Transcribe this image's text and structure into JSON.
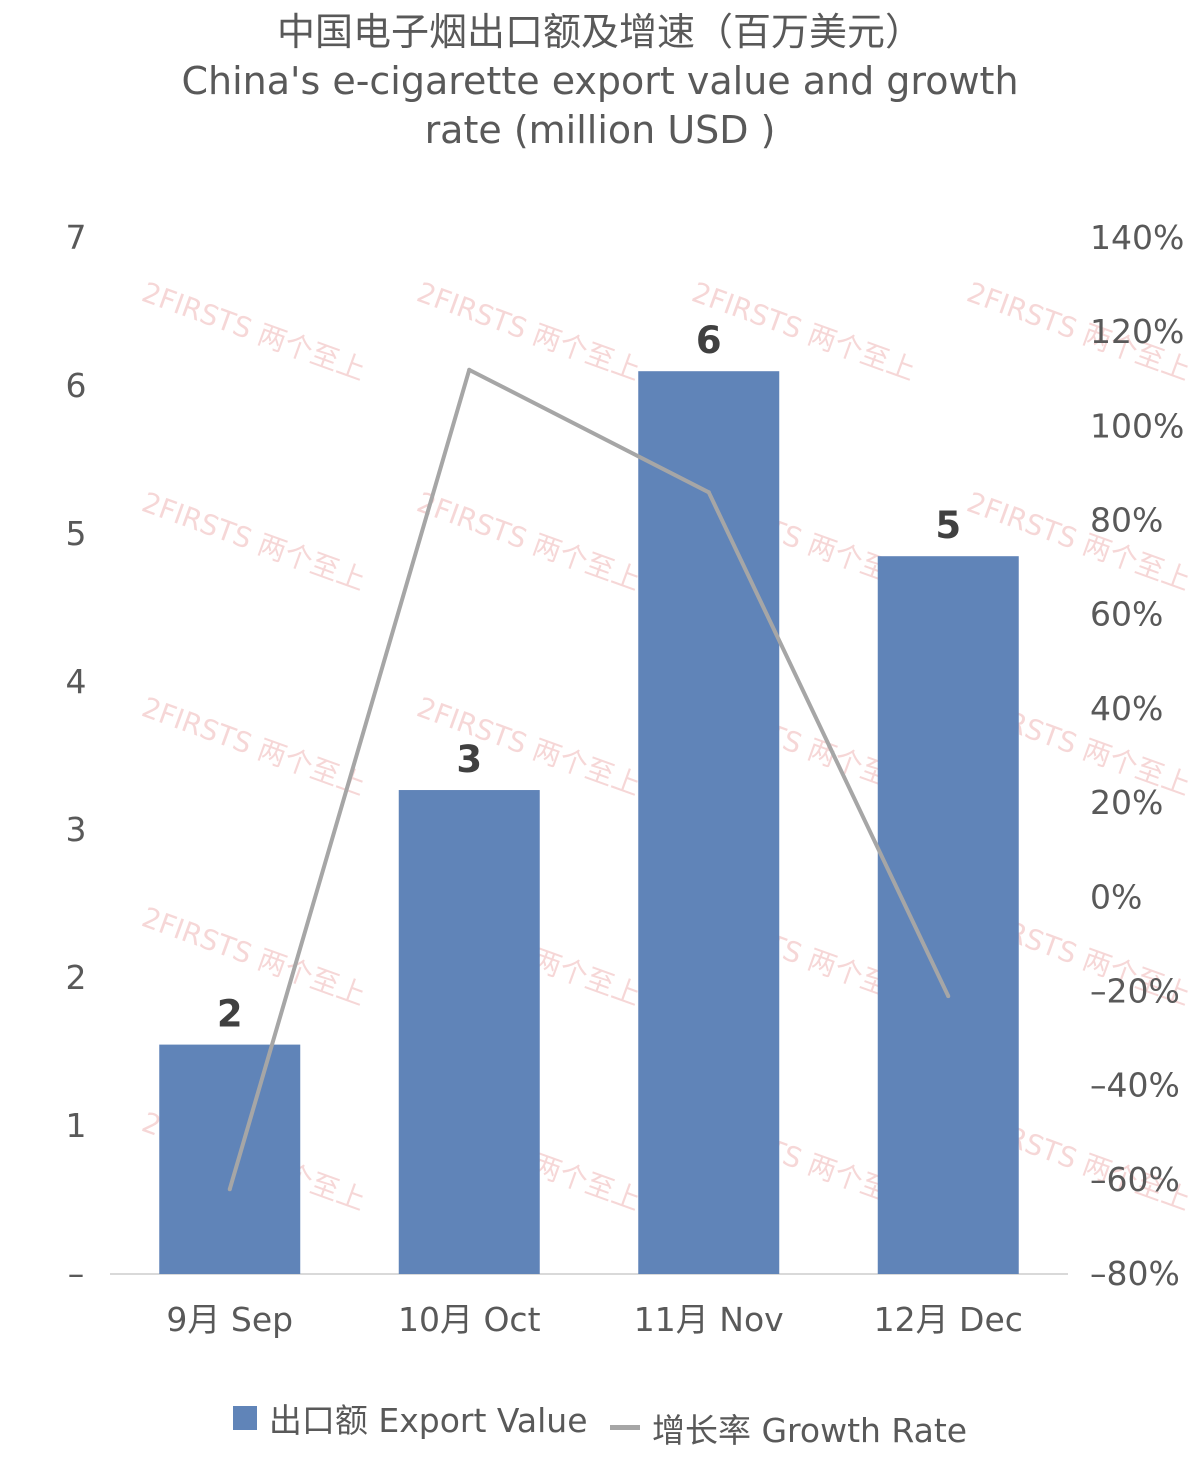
{
  "chart_data": {
    "type": "bar",
    "title": "中国电子烟出口额及增速（百万美元）",
    "subtitle_lines": [
      "China's e-cigarette export value and growth",
      "rate (million USD )"
    ],
    "categories": [
      "9月 Sep",
      "10月 Oct",
      "11月 Nov",
      "12月 Dec"
    ],
    "series": [
      {
        "name": "出口额 Export Value",
        "type": "bar",
        "axis": "left",
        "color": "#6084b8",
        "values": [
          1.55,
          3.27,
          6.1,
          4.85
        ],
        "data_labels": [
          "2",
          "3",
          "6",
          "5"
        ]
      },
      {
        "name": "增长率 Growth Rate",
        "type": "line",
        "axis": "right",
        "color": "#a6a6a6",
        "values": [
          -62,
          112,
          86,
          -21
        ]
      }
    ],
    "y_left": {
      "ylim": [
        0,
        7
      ],
      "ticks": [
        0,
        1,
        2,
        3,
        4,
        5,
        6,
        7
      ],
      "tick_labels": [
        "–",
        "1",
        "2",
        "3",
        "4",
        "5",
        "6",
        "7"
      ]
    },
    "y_right": {
      "ylim": [
        -80,
        140
      ],
      "ticks": [
        -80,
        -60,
        -40,
        -20,
        0,
        20,
        40,
        60,
        80,
        100,
        120,
        140
      ],
      "tick_labels": [
        "–80%",
        "–60%",
        "–40%",
        "–20%",
        "0%",
        "20%",
        "40%",
        "60%",
        "80%",
        "100%",
        "120%",
        "140%"
      ]
    },
    "grid": false,
    "legend_position": "bottom",
    "watermark": "2FIRSTS 两个至上"
  }
}
